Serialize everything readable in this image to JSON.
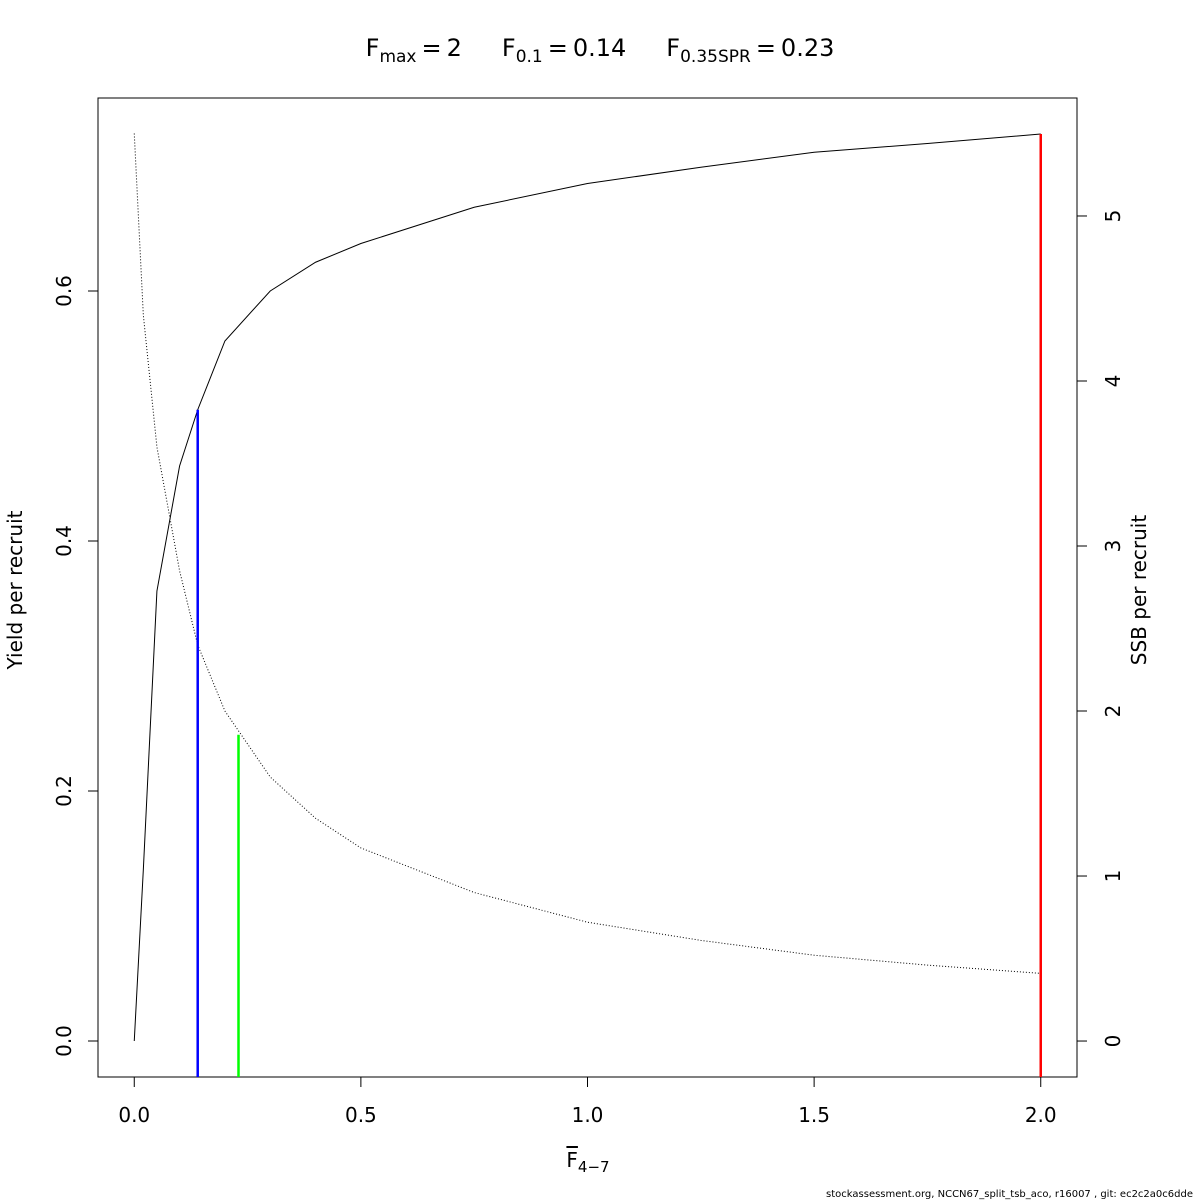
{
  "chart_data": {
    "type": "line",
    "title": [
      {
        "symbol": "F",
        "subscript": "max",
        "separator": "=",
        "value": 2
      },
      {
        "symbol": "F",
        "subscript": "0.1",
        "separator": "=",
        "value": 0.14
      },
      {
        "symbol": "F",
        "subscript": "0.35SPR",
        "separator": "=",
        "value": 0.23
      }
    ],
    "xlabel": {
      "symbol": "F",
      "subscript": "4−7"
    },
    "ylabel": "Yield per recruit",
    "y2label": "SSB per recruit",
    "footer": "stockassessment.org, NCCN67_split_tsb_aco, r16007 , git: ec2c2a0c6dde",
    "x": [
      0,
      0.02,
      0.05,
      0.1,
      0.14,
      0.2,
      0.3,
      0.4,
      0.5,
      0.75,
      1.0,
      1.25,
      1.5,
      1.75,
      2.0
    ],
    "series": [
      {
        "name": "Yield per recruit",
        "color": "#000000",
        "dash": "solid",
        "values": [
          0,
          0.137,
          0.36,
          0.46,
          0.505,
          0.56,
          0.6,
          0.623,
          0.638,
          0.667,
          0.686,
          0.699,
          0.711,
          0.718,
          0.7256
        ]
      },
      {
        "name": "SSB per recruit",
        "color": "#000000",
        "dash": "dotted",
        "axis": "y2",
        "values": [
          5.5,
          4.4,
          3.6,
          2.85,
          2.4,
          2.0,
          1.6,
          1.35,
          1.17,
          0.9,
          0.72,
          0.61,
          0.52,
          0.46,
          0.41
        ]
      }
    ],
    "ref_lines": [
      {
        "x": 0.14,
        "y": 0.505,
        "color": "#0000ff"
      },
      {
        "x": 0.23,
        "y": 0.245,
        "color": "#00ff00"
      },
      {
        "x": 2,
        "y": 0.7256,
        "color": "#ff0000"
      }
    ],
    "xlim": [
      -0.08,
      2.08
    ],
    "ylim": [
      -0.0288,
      0.7544
    ],
    "y2lim": [
      -0.218,
      5.715
    ],
    "xticks": [
      {
        "value": 0,
        "label": "0.0"
      },
      0.5,
      {
        "value": 1,
        "label": "1.0"
      },
      1.5,
      {
        "value": 2,
        "label": "2.0"
      }
    ],
    "yticks": [
      {
        "value": 0,
        "label": "0.0"
      },
      0.2,
      0.4,
      0.6
    ],
    "y2ticks": [
      0,
      1,
      2,
      3,
      4,
      5
    ]
  }
}
